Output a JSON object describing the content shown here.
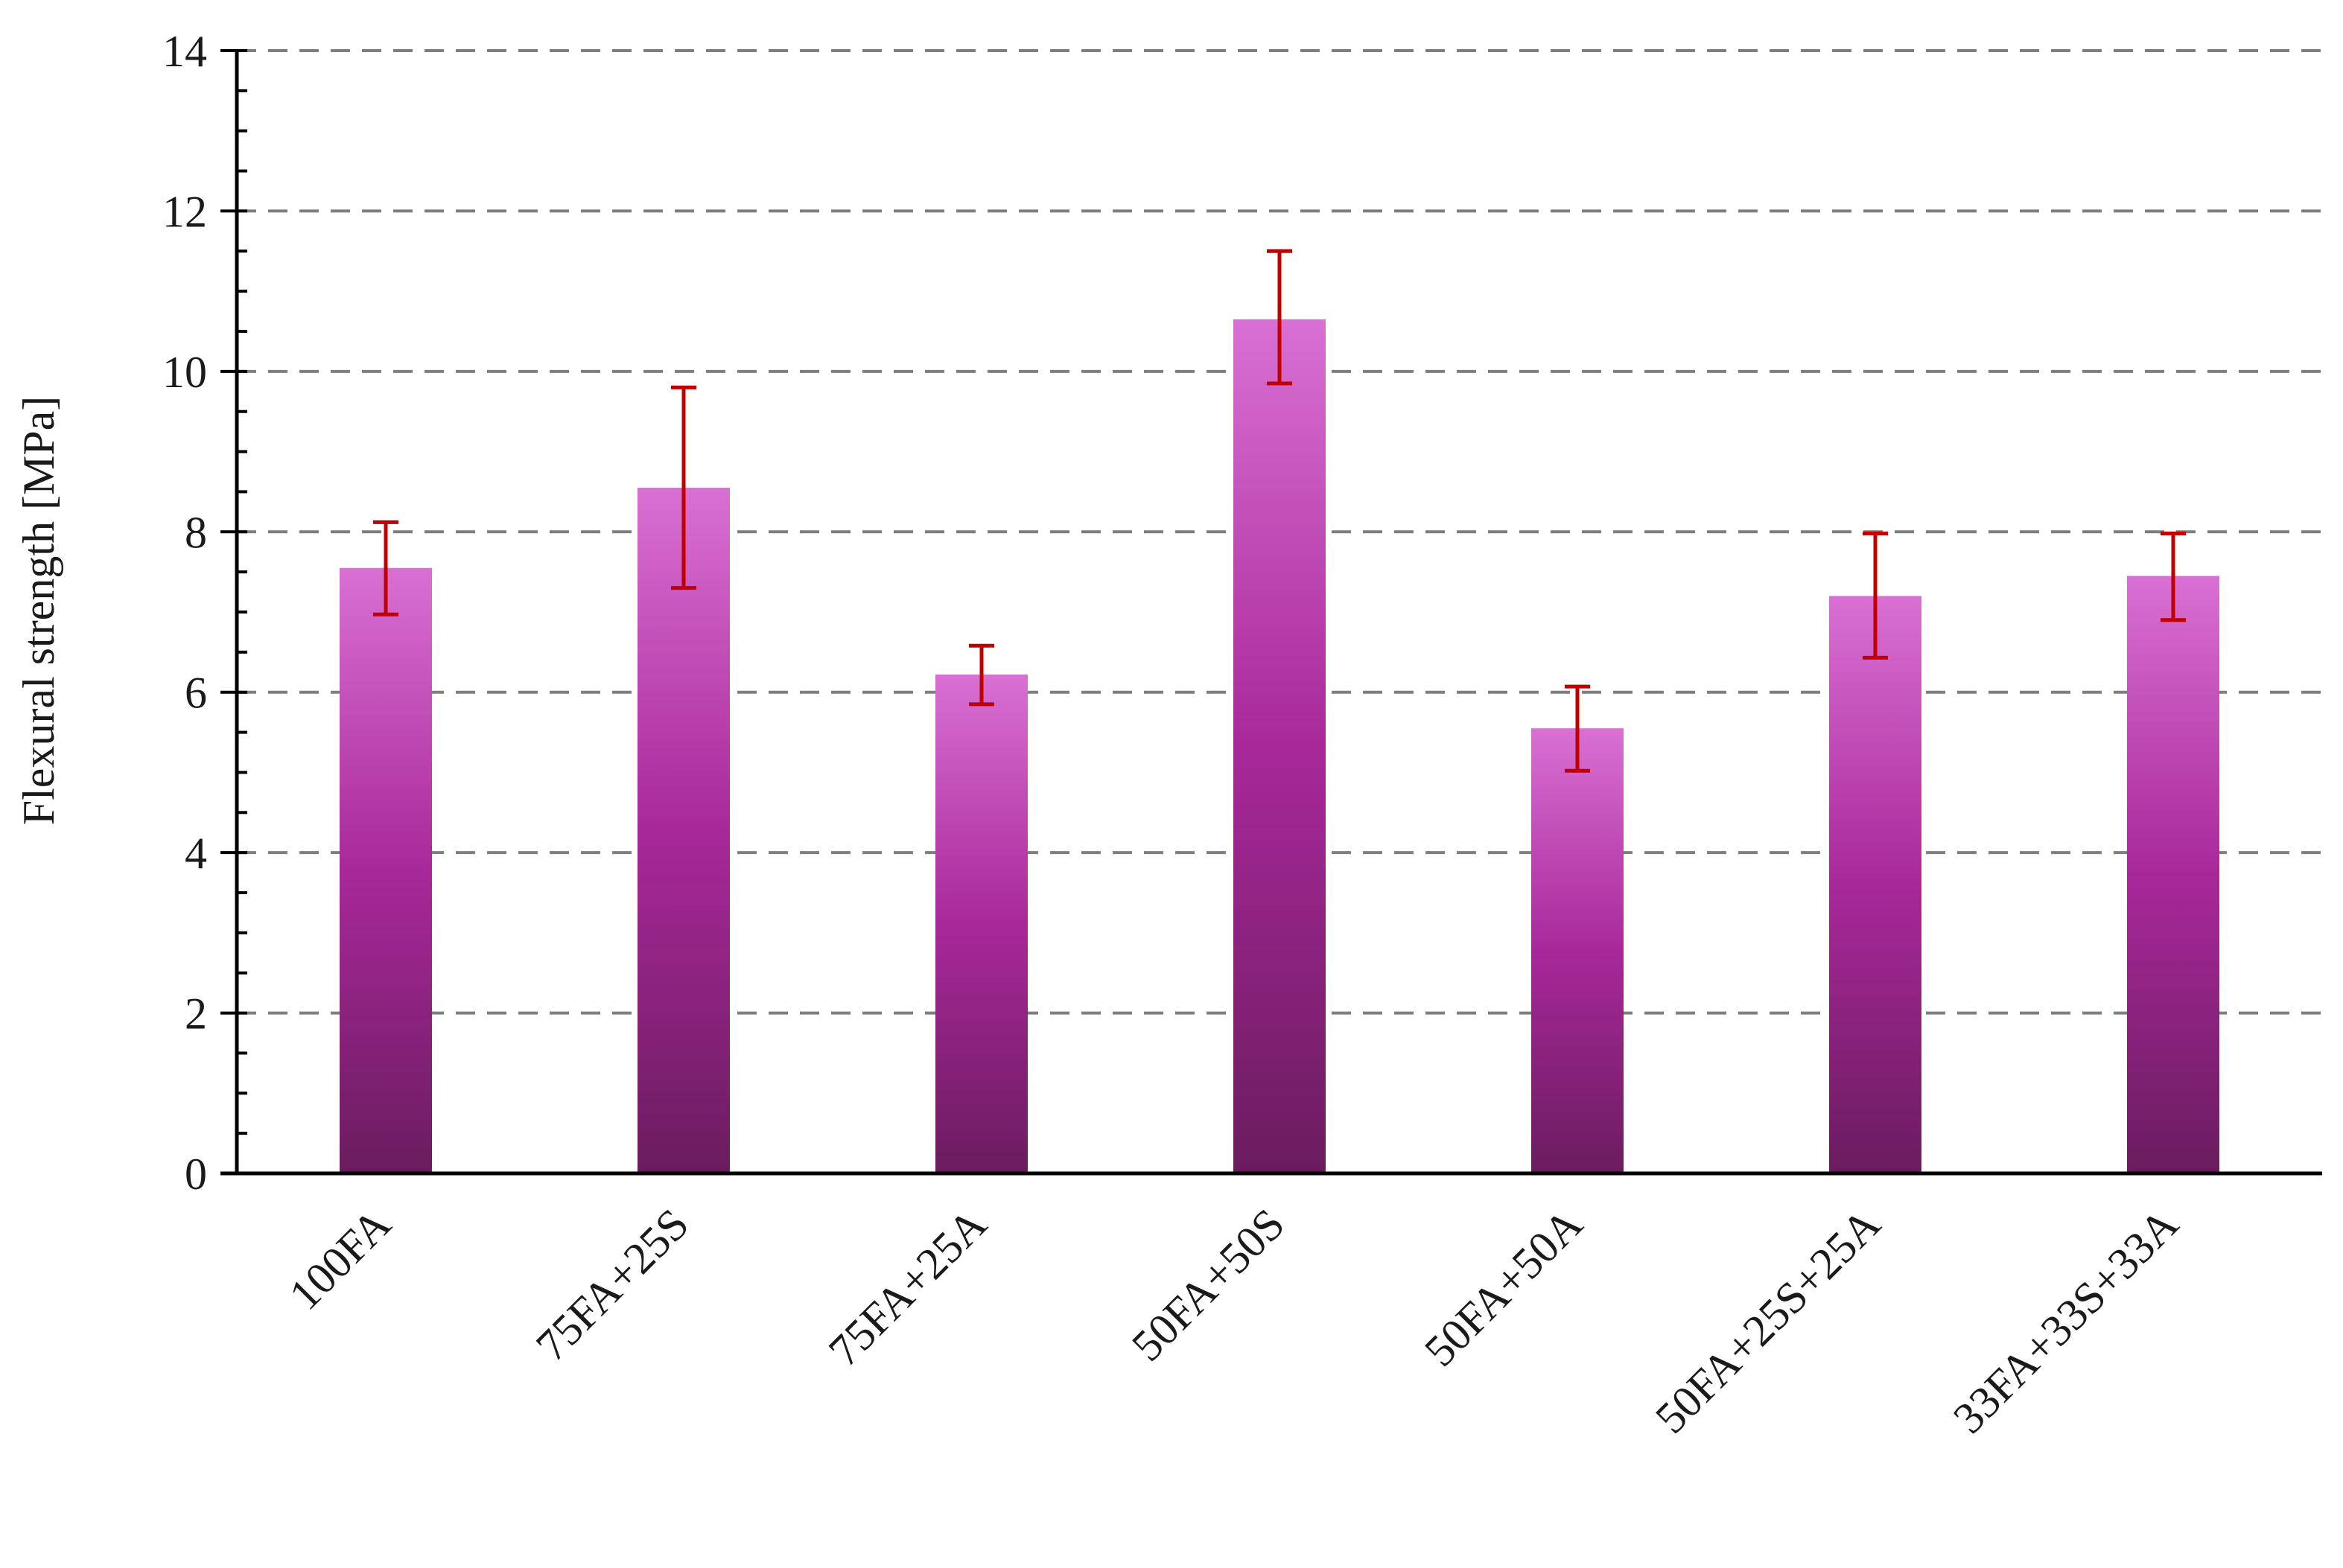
{
  "chart_data": {
    "type": "bar",
    "title": "",
    "xlabel": "",
    "ylabel": "Flexural strength [MPa]",
    "ylim": [
      0,
      14
    ],
    "yticks": [
      0,
      2,
      4,
      6,
      8,
      10,
      12,
      14
    ],
    "grid": "horizontal-dashed",
    "legend": "none",
    "categories": [
      "100FA",
      "75FA+25S",
      "75FA+25A",
      "50FA+50S",
      "50FA+50A",
      "50FA+25S+25A",
      "33FA+33S+33A"
    ],
    "values": [
      7.55,
      8.55,
      6.22,
      10.65,
      5.55,
      7.2,
      7.45
    ],
    "error_low": [
      6.97,
      7.3,
      5.85,
      9.85,
      5.02,
      6.43,
      6.9
    ],
    "error_high": [
      8.12,
      9.8,
      6.58,
      11.5,
      6.07,
      7.98,
      7.98
    ],
    "colors": {
      "bar_top": "#d970d3",
      "bar_mid": "#a8289a",
      "bar_bottom": "#6a1c5e",
      "error_bar": "#c00000",
      "grid": "#7f7f7f",
      "axis": "#000000"
    }
  }
}
